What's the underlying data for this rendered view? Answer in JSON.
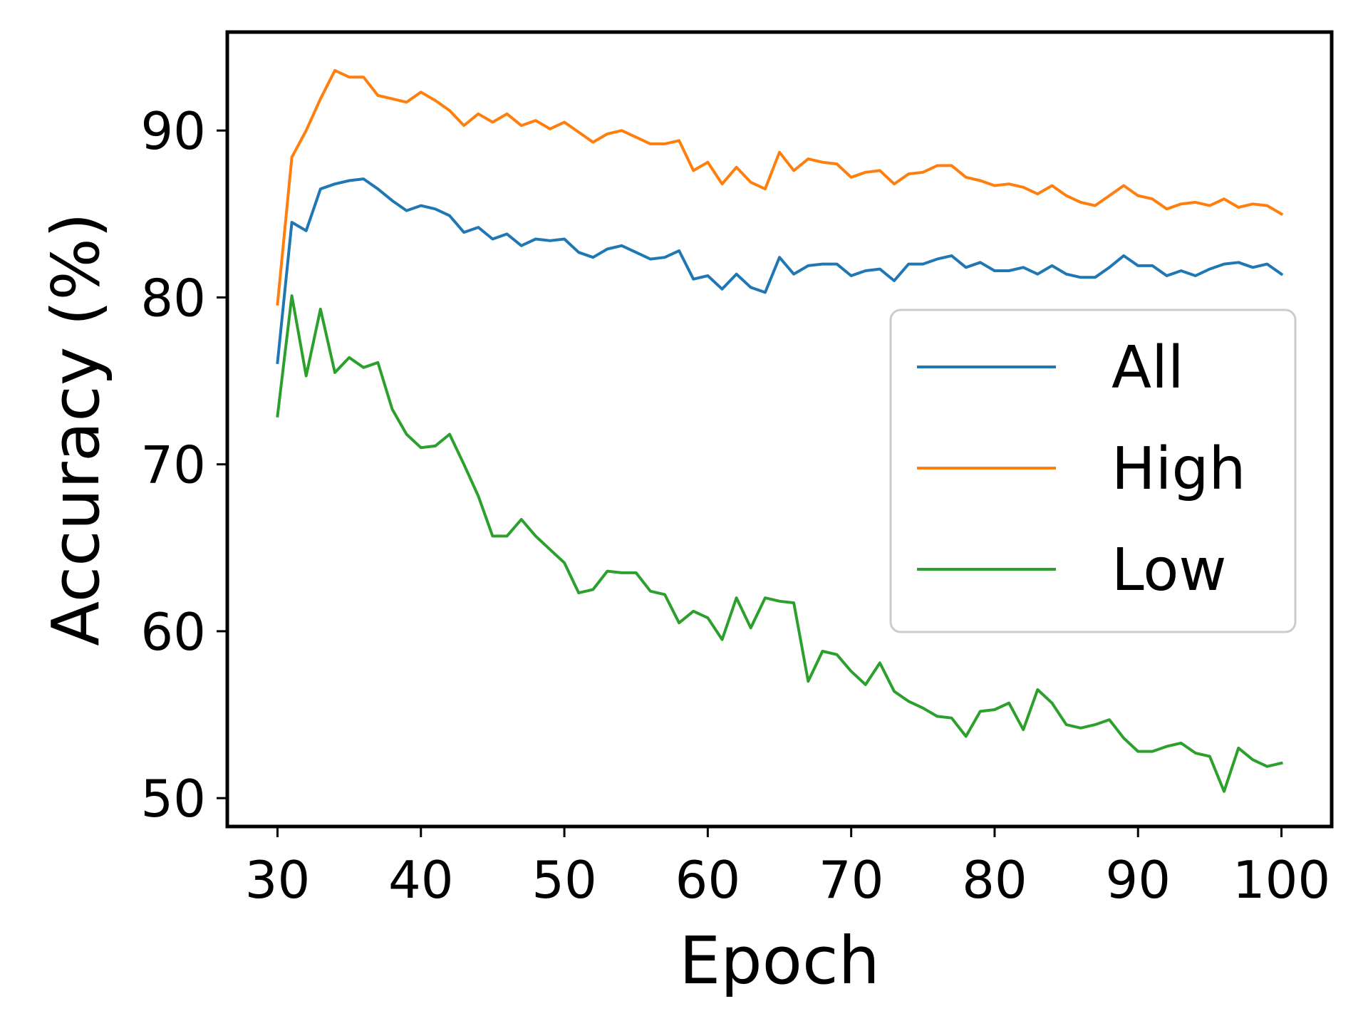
{
  "chart_data": {
    "type": "line",
    "title": "",
    "xlabel": "Epoch",
    "ylabel": "Accuracy (%)",
    "xlim": [
      26.5,
      103.5
    ],
    "ylim": [
      48.3,
      95.9
    ],
    "xticks": [
      30,
      40,
      50,
      60,
      70,
      80,
      90,
      100
    ],
    "yticks": [
      50,
      60,
      70,
      80,
      90
    ],
    "grid": false,
    "legend_position": "center-right",
    "x": [
      30,
      31,
      32,
      33,
      34,
      35,
      36,
      37,
      38,
      39,
      40,
      41,
      42,
      43,
      44,
      45,
      46,
      47,
      48,
      49,
      50,
      51,
      52,
      53,
      54,
      55,
      56,
      57,
      58,
      59,
      60,
      61,
      62,
      63,
      64,
      65,
      66,
      67,
      68,
      69,
      70,
      71,
      72,
      73,
      74,
      75,
      76,
      77,
      78,
      79,
      80,
      81,
      82,
      83,
      84,
      85,
      86,
      87,
      88,
      89,
      90,
      91,
      92,
      93,
      94,
      95,
      96,
      97,
      98,
      99,
      100
    ],
    "series": [
      {
        "name": "All",
        "color": "#1f77b4",
        "values": [
          76.1,
          84.5,
          84.0,
          86.5,
          86.8,
          87.0,
          87.1,
          86.5,
          85.8,
          85.2,
          85.5,
          85.3,
          84.9,
          83.9,
          84.2,
          83.5,
          83.8,
          83.1,
          83.5,
          83.4,
          83.5,
          82.7,
          82.4,
          82.9,
          83.1,
          82.7,
          82.3,
          82.4,
          82.8,
          81.1,
          81.3,
          80.5,
          81.4,
          80.6,
          80.3,
          82.4,
          81.4,
          81.9,
          82.0,
          82.0,
          81.3,
          81.6,
          81.7,
          81.0,
          82.0,
          82.0,
          82.3,
          82.5,
          81.8,
          82.1,
          81.6,
          81.6,
          81.8,
          81.4,
          81.9,
          81.4,
          81.2,
          81.2,
          81.8,
          82.5,
          81.9,
          81.9,
          81.3,
          81.6,
          81.3,
          81.7,
          82.0,
          82.1,
          81.8,
          82.0,
          81.4
        ]
      },
      {
        "name": "High",
        "color": "#ff7f0e",
        "values": [
          79.6,
          88.4,
          90.0,
          91.9,
          93.6,
          93.2,
          93.2,
          92.1,
          91.9,
          91.7,
          92.3,
          91.8,
          91.2,
          90.3,
          91.0,
          90.5,
          91.0,
          90.3,
          90.6,
          90.1,
          90.5,
          89.9,
          89.3,
          89.8,
          90.0,
          89.6,
          89.2,
          89.2,
          89.4,
          87.6,
          88.1,
          86.8,
          87.8,
          86.9,
          86.5,
          88.7,
          87.6,
          88.3,
          88.1,
          88.0,
          87.2,
          87.5,
          87.6,
          86.8,
          87.4,
          87.5,
          87.9,
          87.9,
          87.2,
          87.0,
          86.7,
          86.8,
          86.6,
          86.2,
          86.7,
          86.1,
          85.7,
          85.5,
          86.1,
          86.7,
          86.1,
          85.9,
          85.3,
          85.6,
          85.7,
          85.5,
          85.9,
          85.4,
          85.6,
          85.5,
          85.0
        ]
      },
      {
        "name": "Low",
        "color": "#2ca02c",
        "values": [
          72.9,
          80.1,
          75.3,
          79.3,
          75.5,
          76.4,
          75.8,
          76.1,
          73.3,
          71.8,
          71.0,
          71.1,
          71.8,
          70.0,
          68.1,
          65.7,
          65.7,
          66.7,
          65.7,
          64.9,
          64.1,
          62.3,
          62.5,
          63.6,
          63.5,
          63.5,
          62.4,
          62.2,
          60.5,
          61.2,
          60.8,
          59.5,
          62.0,
          60.2,
          62.0,
          61.8,
          61.7,
          57.0,
          58.8,
          58.6,
          57.6,
          56.8,
          58.1,
          56.4,
          55.8,
          55.4,
          54.9,
          54.8,
          53.7,
          55.2,
          55.3,
          55.7,
          54.1,
          56.5,
          55.7,
          54.4,
          54.2,
          54.4,
          54.7,
          53.6,
          52.8,
          52.8,
          53.1,
          53.3,
          52.7,
          52.5,
          50.4,
          53.0,
          52.3,
          51.9,
          52.1
        ]
      }
    ]
  }
}
